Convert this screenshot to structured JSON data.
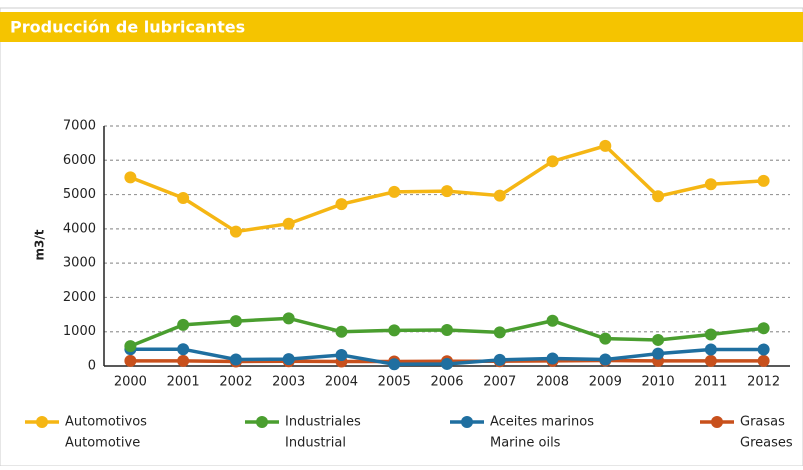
{
  "chart_data": {
    "type": "line",
    "title": "Producción de lubricantes",
    "y_label": "m3/t",
    "categories": [
      "2000",
      "2001",
      "2002",
      "2003",
      "2004",
      "2005",
      "2006",
      "2007",
      "2008",
      "2009",
      "2010",
      "2011",
      "2012"
    ],
    "series": [
      {
        "name": "Automotivos",
        "name_alt": "Automotive",
        "color": "#f5b614",
        "values": [
          5500,
          4900,
          3920,
          4150,
          4720,
          5080,
          5100,
          4970,
          5970,
          6420,
          4950,
          5300,
          5400
        ]
      },
      {
        "name": "Industriales",
        "name_alt": "Industrial",
        "color": "#4a9e2f",
        "values": [
          580,
          1200,
          1310,
          1390,
          1000,
          1040,
          1050,
          980,
          1320,
          800,
          760,
          920,
          1100
        ]
      },
      {
        "name": "Aceites marinos",
        "name_alt": "Marine oils",
        "color": "#1f6fa0",
        "values": [
          490,
          490,
          190,
          200,
          320,
          50,
          60,
          180,
          220,
          190,
          360,
          480,
          480
        ]
      },
      {
        "name": "Grasas",
        "name_alt": "Greases",
        "color": "#c8501c",
        "values": [
          150,
          150,
          130,
          140,
          130,
          130,
          140,
          140,
          150,
          160,
          150,
          150,
          150
        ]
      }
    ],
    "ylim": [
      0,
      7000
    ],
    "yticks": [
      0,
      1000,
      2000,
      3000,
      4000,
      5000,
      6000,
      7000
    ],
    "grid": true
  }
}
